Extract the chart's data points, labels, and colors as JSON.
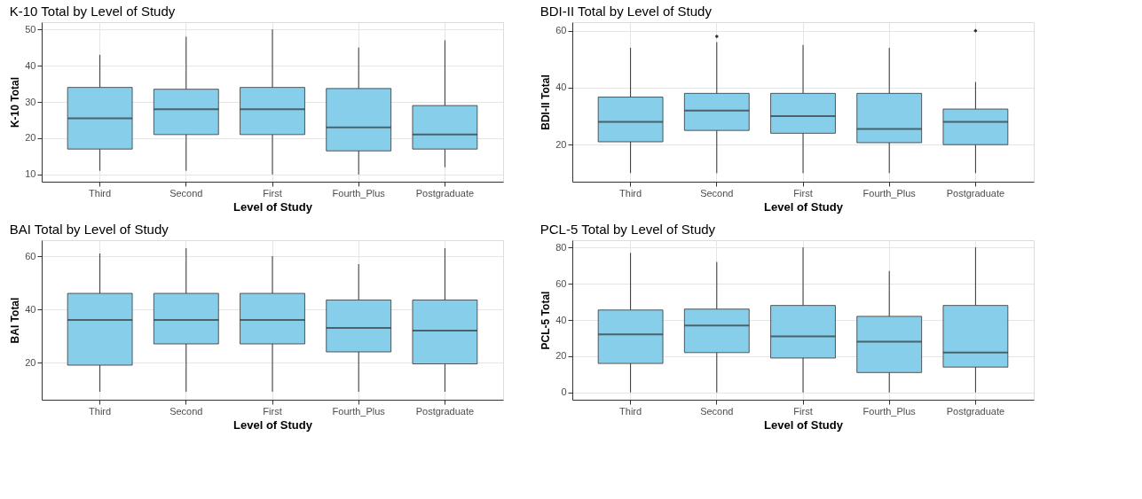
{
  "chart_data": [
    {
      "type": "box",
      "title": "K-10 Total by Level of Study",
      "xlabel": "Level of Study",
      "ylabel": "K-10 Total",
      "categories": [
        "Third",
        "Second",
        "First",
        "Fourth_Plus",
        "Postgraduate"
      ],
      "ylim": [
        8,
        52
      ],
      "yticks": [
        10,
        20,
        30,
        40,
        50
      ],
      "grid": true,
      "color": "#87ceeb",
      "boxes": [
        {
          "low": 11,
          "q1": 17,
          "median": 25.5,
          "q3": 34,
          "high": 43
        },
        {
          "low": 11,
          "q1": 21,
          "median": 28,
          "q3": 33.5,
          "high": 48
        },
        {
          "low": 10,
          "q1": 21,
          "median": 28,
          "q3": 34,
          "high": 50
        },
        {
          "low": 10,
          "q1": 16.5,
          "median": 23,
          "q3": 33.7,
          "high": 45
        },
        {
          "low": 12,
          "q1": 17,
          "median": 21,
          "q3": 29,
          "high": 47
        }
      ]
    },
    {
      "type": "box",
      "title": "BDI-II Total by Level of Study",
      "xlabel": "Level of Study",
      "ylabel": "BDI-II Total",
      "categories": [
        "Third",
        "Second",
        "First",
        "Fourth_Plus",
        "Postgraduate"
      ],
      "ylim": [
        7,
        63
      ],
      "yticks": [
        20,
        40,
        60
      ],
      "grid": true,
      "color": "#87ceeb",
      "boxes": [
        {
          "low": 10,
          "q1": 21,
          "median": 28,
          "q3": 36.7,
          "high": 54
        },
        {
          "low": 10,
          "q1": 25,
          "median": 32,
          "q3": 38,
          "high": 56,
          "outliers": [
            58
          ]
        },
        {
          "low": 10,
          "q1": 24,
          "median": 30,
          "q3": 38,
          "high": 55
        },
        {
          "low": 10,
          "q1": 20.7,
          "median": 25.5,
          "q3": 38,
          "high": 54
        },
        {
          "low": 10,
          "q1": 20,
          "median": 28,
          "q3": 32.5,
          "high": 42,
          "outliers": [
            60
          ]
        }
      ]
    },
    {
      "type": "box",
      "title": "BAI Total by Level of Study",
      "xlabel": "Level of Study",
      "ylabel": "BAI Total",
      "categories": [
        "Third",
        "Second",
        "First",
        "Fourth_Plus",
        "Postgraduate"
      ],
      "ylim": [
        6,
        66
      ],
      "yticks": [
        20,
        40,
        60
      ],
      "grid": true,
      "color": "#87ceeb",
      "boxes": [
        {
          "low": 9,
          "q1": 19,
          "median": 36,
          "q3": 46,
          "high": 61
        },
        {
          "low": 9,
          "q1": 27,
          "median": 36,
          "q3": 46,
          "high": 63
        },
        {
          "low": 9,
          "q1": 27,
          "median": 36,
          "q3": 46,
          "high": 60
        },
        {
          "low": 9,
          "q1": 24,
          "median": 33,
          "q3": 43.5,
          "high": 57
        },
        {
          "low": 9,
          "q1": 19.5,
          "median": 32,
          "q3": 43.5,
          "high": 63
        }
      ]
    },
    {
      "type": "box",
      "title": "PCL-5 Total by Level of Study",
      "xlabel": "Level of Study",
      "ylabel": "PCL-5 Total",
      "categories": [
        "Third",
        "Second",
        "First",
        "Fourth_Plus",
        "Postgraduate"
      ],
      "ylim": [
        -4,
        84
      ],
      "yticks": [
        0,
        20,
        40,
        60,
        80
      ],
      "grid": true,
      "color": "#87ceeb",
      "boxes": [
        {
          "low": 0,
          "q1": 16,
          "median": 32,
          "q3": 45.5,
          "high": 77
        },
        {
          "low": 0,
          "q1": 22,
          "median": 37,
          "q3": 46,
          "high": 72
        },
        {
          "low": 0,
          "q1": 19,
          "median": 31,
          "q3": 48,
          "high": 80
        },
        {
          "low": 0,
          "q1": 11,
          "median": 28,
          "q3": 42,
          "high": 67
        },
        {
          "low": 0,
          "q1": 14,
          "median": 22,
          "q3": 48,
          "high": 80
        }
      ]
    }
  ]
}
